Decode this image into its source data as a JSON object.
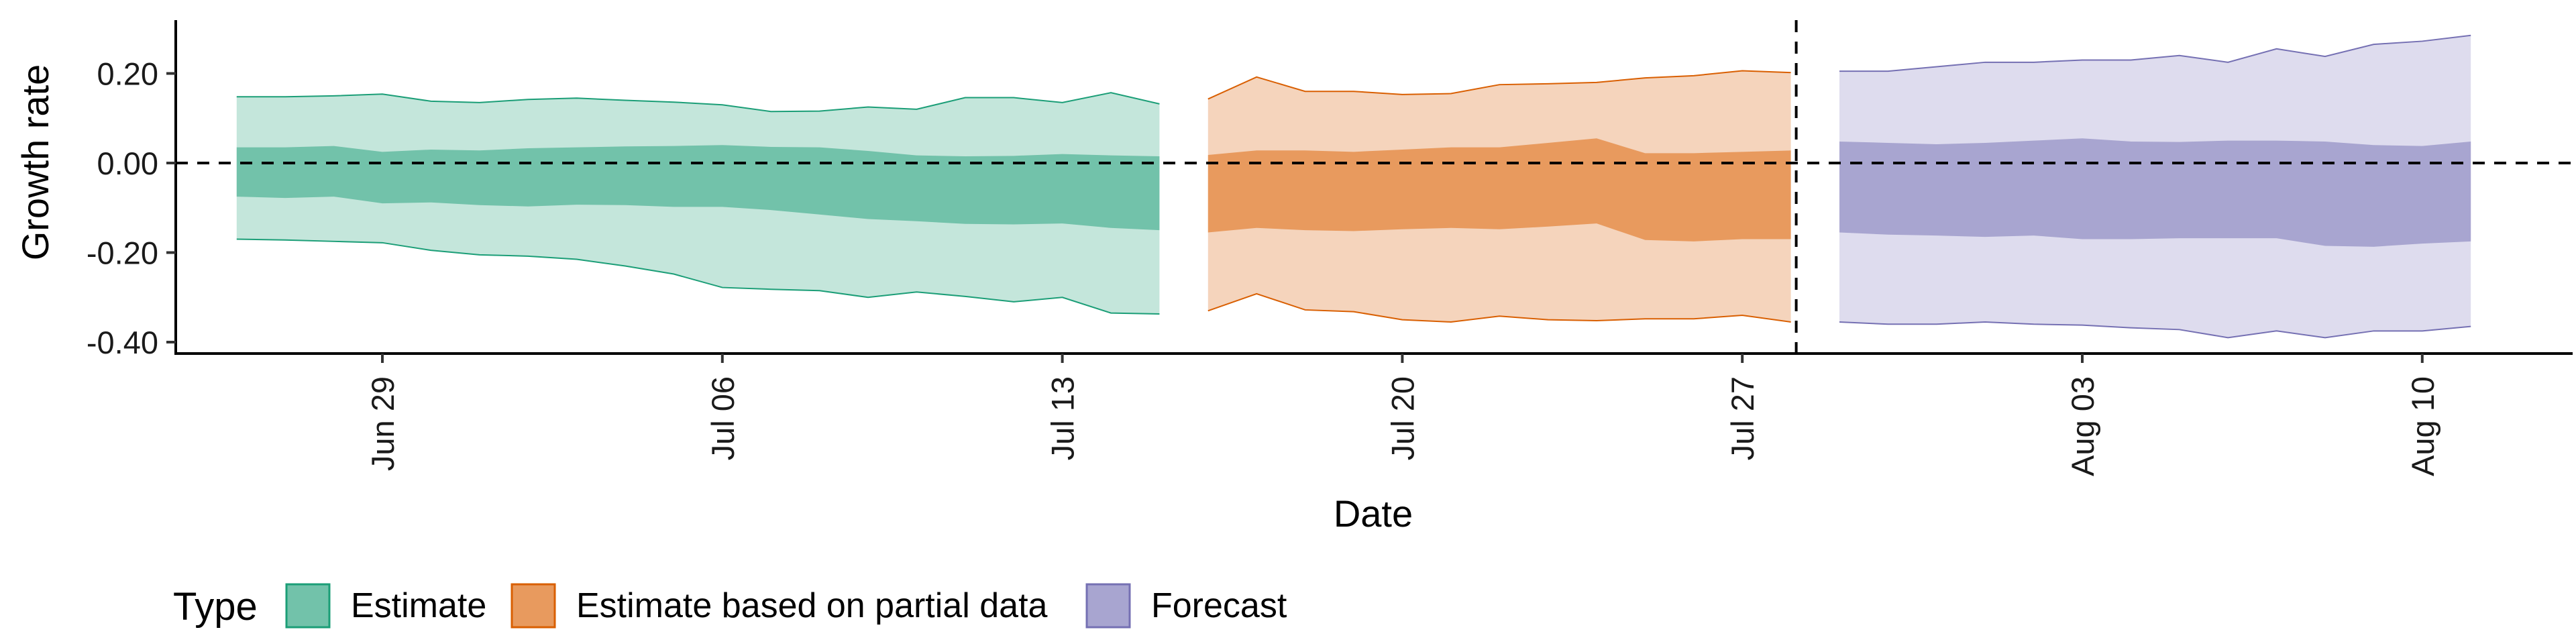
{
  "chart_data": {
    "type": "area",
    "title": "",
    "xlabel": "Date",
    "ylabel": "Growth rate",
    "x_axis": {
      "type": "date",
      "range": [
        "2020-06-23",
        "2020-08-17"
      ]
    },
    "ylim": [
      -0.42,
      0.32
    ],
    "y_ticks": [
      {
        "value": 0.2,
        "label": "0.20"
      },
      {
        "value": 0.0,
        "label": "0.00"
      },
      {
        "value": -0.2,
        "label": "-0.20"
      },
      {
        "value": -0.4,
        "label": "-0.40"
      }
    ],
    "x_ticks": [
      {
        "date": "2020-06-29",
        "label": "Jun 29"
      },
      {
        "date": "2020-07-06",
        "label": "Jul 06"
      },
      {
        "date": "2020-07-13",
        "label": "Jul 13"
      },
      {
        "date": "2020-07-20",
        "label": "Jul 20"
      },
      {
        "date": "2020-07-27",
        "label": "Jul 27"
      },
      {
        "date": "2020-08-03",
        "label": "Aug 03"
      },
      {
        "date": "2020-08-10",
        "label": "Aug 10"
      }
    ],
    "hline": 0.0,
    "vline": "2020-07-28",
    "grid": false,
    "legend": {
      "title": "Type",
      "position": "bottom-left",
      "entries": [
        {
          "label": "Estimate",
          "fill": "#72C2AA",
          "border": "#1B9E77"
        },
        {
          "label": "Estimate based on partial data",
          "fill": "#E89A5E",
          "border": "#D95F02"
        },
        {
          "label": "Forecast",
          "fill": "#A8A5D0",
          "border": "#7570B3"
        }
      ]
    },
    "series": [
      {
        "name": "Estimate",
        "color_outer": "#C4E6DB",
        "color_inner": "#72C2AA",
        "color_line": "#1B9E77",
        "dates": [
          "2020-06-26",
          "2020-06-27",
          "2020-06-28",
          "2020-06-29",
          "2020-06-30",
          "2020-07-01",
          "2020-07-02",
          "2020-07-03",
          "2020-07-04",
          "2020-07-05",
          "2020-07-06",
          "2020-07-07",
          "2020-07-08",
          "2020-07-09",
          "2020-07-10",
          "2020-07-11",
          "2020-07-12",
          "2020-07-13",
          "2020-07-14",
          "2020-07-15"
        ],
        "upper_90": [
          0.148,
          0.148,
          0.15,
          0.154,
          0.138,
          0.135,
          0.142,
          0.145,
          0.14,
          0.136,
          0.13,
          0.115,
          0.116,
          0.125,
          0.12,
          0.146,
          0.146,
          0.135,
          0.157,
          0.132
        ],
        "upper_50": [
          0.035,
          0.035,
          0.038,
          0.025,
          0.03,
          0.028,
          0.033,
          0.035,
          0.037,
          0.038,
          0.04,
          0.036,
          0.035,
          0.027,
          0.017,
          0.015,
          0.016,
          0.02,
          0.017,
          0.015
        ],
        "lower_50": [
          -0.075,
          -0.078,
          -0.075,
          -0.09,
          -0.088,
          -0.094,
          -0.097,
          -0.093,
          -0.094,
          -0.098,
          -0.098,
          -0.105,
          -0.115,
          -0.125,
          -0.13,
          -0.136,
          -0.137,
          -0.135,
          -0.145,
          -0.15
        ],
        "lower_90": [
          -0.17,
          -0.172,
          -0.175,
          -0.178,
          -0.195,
          -0.205,
          -0.208,
          -0.215,
          -0.23,
          -0.248,
          -0.278,
          -0.282,
          -0.285,
          -0.3,
          -0.288,
          -0.298,
          -0.31,
          -0.3,
          -0.335,
          -0.337
        ]
      },
      {
        "name": "Estimate based on partial data",
        "color_outer": "#F5D4BC",
        "color_inner": "#E89A5E",
        "color_line": "#D95F02",
        "dates": [
          "2020-07-16",
          "2020-07-17",
          "2020-07-18",
          "2020-07-19",
          "2020-07-20",
          "2020-07-21",
          "2020-07-22",
          "2020-07-23",
          "2020-07-24",
          "2020-07-25",
          "2020-07-26",
          "2020-07-27",
          "2020-07-28"
        ],
        "upper_90": [
          0.143,
          0.192,
          0.16,
          0.16,
          0.153,
          0.155,
          0.175,
          0.177,
          0.18,
          0.19,
          0.195,
          0.206,
          0.202
        ],
        "upper_50": [
          0.018,
          0.028,
          0.028,
          0.025,
          0.03,
          0.035,
          0.035,
          0.045,
          0.055,
          0.022,
          0.022,
          0.025,
          0.028
        ],
        "lower_50": [
          -0.155,
          -0.145,
          -0.15,
          -0.152,
          -0.148,
          -0.145,
          -0.148,
          -0.142,
          -0.135,
          -0.172,
          -0.175,
          -0.17,
          -0.17
        ],
        "lower_90": [
          -0.33,
          -0.292,
          -0.328,
          -0.332,
          -0.35,
          -0.355,
          -0.342,
          -0.35,
          -0.352,
          -0.348,
          -0.348,
          -0.34,
          -0.355
        ]
      },
      {
        "name": "Forecast",
        "color_outer": "#DEDCEE",
        "color_inner": "#A8A5D0",
        "color_line": "#7570B3",
        "dates": [
          "2020-07-29",
          "2020-07-30",
          "2020-07-31",
          "2020-08-01",
          "2020-08-02",
          "2020-08-03",
          "2020-08-04",
          "2020-08-05",
          "2020-08-06",
          "2020-08-07",
          "2020-08-08",
          "2020-08-09",
          "2020-08-10",
          "2020-08-11"
        ],
        "upper_90": [
          0.205,
          0.205,
          0.215,
          0.225,
          0.225,
          0.23,
          0.23,
          0.24,
          0.225,
          0.255,
          0.238,
          0.265,
          0.272,
          0.285
        ],
        "upper_50": [
          0.048,
          0.045,
          0.042,
          0.045,
          0.05,
          0.055,
          0.048,
          0.047,
          0.05,
          0.05,
          0.048,
          0.04,
          0.038,
          0.048
        ],
        "lower_50": [
          -0.155,
          -0.16,
          -0.162,
          -0.165,
          -0.162,
          -0.17,
          -0.17,
          -0.168,
          -0.168,
          -0.168,
          -0.185,
          -0.187,
          -0.18,
          -0.175
        ],
        "lower_90": [
          -0.355,
          -0.36,
          -0.36,
          -0.355,
          -0.36,
          -0.362,
          -0.368,
          -0.372,
          -0.39,
          -0.375,
          -0.39,
          -0.375,
          -0.375,
          -0.365
        ]
      }
    ]
  }
}
